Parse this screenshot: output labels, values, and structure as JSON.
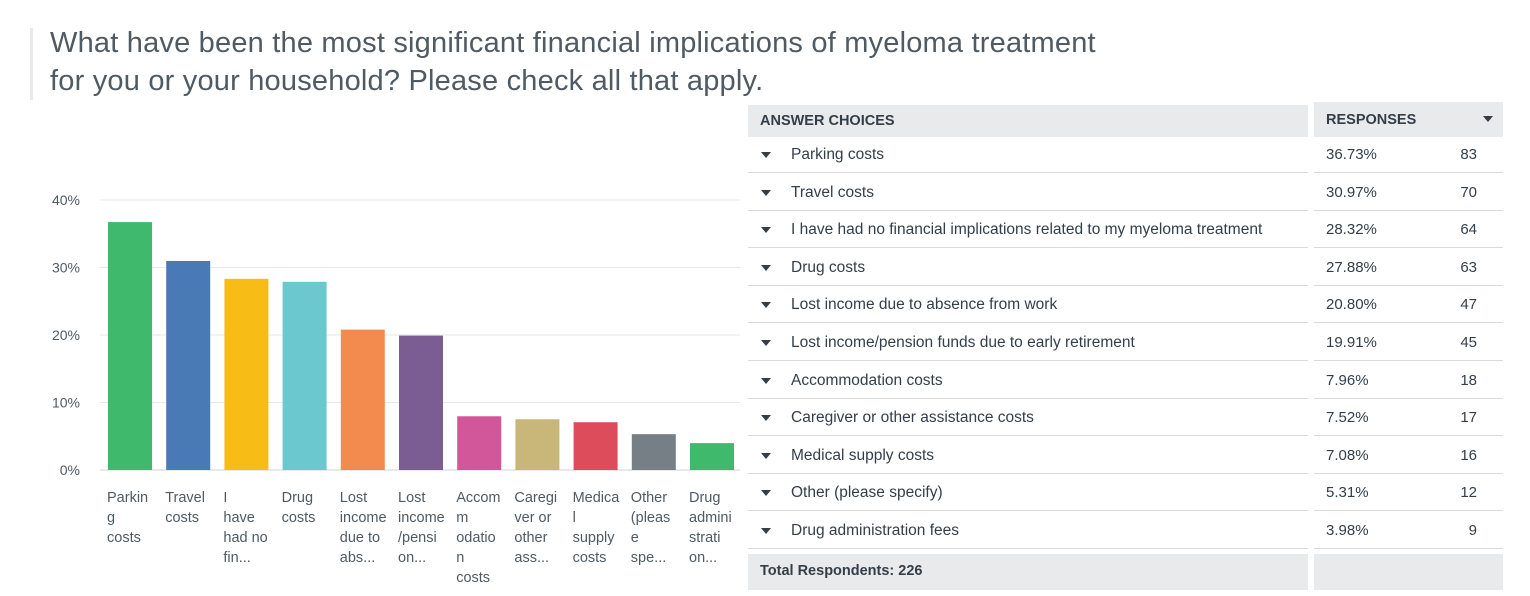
{
  "question": {
    "title": "What have been the most significant financial implications of myeloma treatment for you or your household? Please check all that apply."
  },
  "table": {
    "header_answer": "ANSWER CHOICES",
    "header_responses": "RESPONSES",
    "total_label": "Total Respondents: 226",
    "rows": [
      {
        "answer": "Parking costs",
        "percent": "36.73%",
        "count": "83"
      },
      {
        "answer": "Travel costs",
        "percent": "30.97%",
        "count": "70"
      },
      {
        "answer": "I have had no financial implications related to my myeloma treatment",
        "percent": "28.32%",
        "count": "64"
      },
      {
        "answer": "Drug costs",
        "percent": "27.88%",
        "count": "63"
      },
      {
        "answer": "Lost income due to absence from work",
        "percent": "20.80%",
        "count": "47"
      },
      {
        "answer": "Lost income/pension funds due to early retirement",
        "percent": "19.91%",
        "count": "45"
      },
      {
        "answer": "Accommodation costs",
        "percent": "7.96%",
        "count": "18"
      },
      {
        "answer": "Caregiver or other assistance costs",
        "percent": "7.52%",
        "count": "17"
      },
      {
        "answer": "Medical supply costs",
        "percent": "7.08%",
        "count": "16"
      },
      {
        "answer": "Other (please specify)",
        "percent": "5.31%",
        "count": "12"
      },
      {
        "answer": "Drug administration fees",
        "percent": "3.98%",
        "count": "9"
      }
    ]
  },
  "chart_data": {
    "type": "bar",
    "categories": [
      "Parkin g costs",
      "Travel costs",
      "I have had no fin...",
      "Drug costs",
      "Lost income due to abs...",
      "Lost income /pensi on...",
      "Accomm odatio n costs",
      "Caregi ver or other ass...",
      "Medica l supply costs",
      "Other (pleas e spe...",
      "Drug admini strati on..."
    ],
    "category_lines": [
      [
        "Parkin",
        "g",
        "costs"
      ],
      [
        "Travel",
        "costs"
      ],
      [
        "I",
        "have",
        "had no",
        "fin..."
      ],
      [
        "Drug",
        "costs"
      ],
      [
        "Lost",
        "income",
        "due to",
        "abs..."
      ],
      [
        "Lost",
        "income",
        "/pensi",
        "on..."
      ],
      [
        "Accomm",
        "odatio",
        "n",
        "costs"
      ],
      [
        "Caregi",
        "ver or",
        "other",
        "ass..."
      ],
      [
        "Medica",
        "l",
        "supply",
        "costs"
      ],
      [
        "Other",
        "(pleas",
        "e",
        "spe..."
      ],
      [
        "Drug",
        "admini",
        "strati",
        "on..."
      ]
    ],
    "values": [
      36.73,
      30.97,
      28.32,
      27.88,
      20.8,
      19.91,
      7.96,
      7.52,
      7.08,
      5.31,
      3.98
    ],
    "colors": [
      "#3fba6c",
      "#4a7ab6",
      "#f7bd16",
      "#6cc8cf",
      "#f38b4e",
      "#7c5d93",
      "#d2579a",
      "#c9b77a",
      "#dc4c5a",
      "#767f86",
      "#3fba6c"
    ],
    "yticks": [
      "0%",
      "10%",
      "20%",
      "30%",
      "40%"
    ],
    "ylim": [
      0,
      40
    ],
    "grid": true
  }
}
